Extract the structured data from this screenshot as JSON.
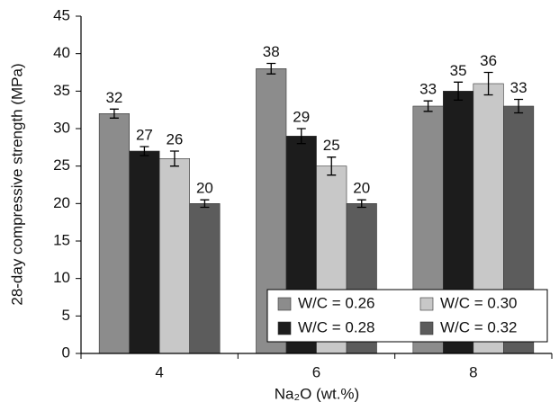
{
  "chart_data": {
    "type": "bar",
    "x_label": "Na₂O (wt.%)",
    "y_label": "28-day compressive strength (MPa)",
    "categories": [
      "4",
      "6",
      "8"
    ],
    "series": [
      {
        "name": "W/C = 0.26",
        "color": "#8c8c8c",
        "values": [
          32,
          38,
          33
        ],
        "errors": [
          0.6,
          0.7,
          0.7
        ]
      },
      {
        "name": "W/C = 0.28",
        "color": "#1c1c1c",
        "values": [
          27,
          29,
          35
        ],
        "errors": [
          0.6,
          1,
          1.2
        ]
      },
      {
        "name": "W/C = 0.30",
        "color": "#c8c8c8",
        "values": [
          26,
          25,
          36
        ],
        "errors": [
          1,
          1.2,
          1.5
        ]
      },
      {
        "name": "W/C = 0.32",
        "color": "#5c5c5c",
        "values": [
          20,
          20,
          33
        ],
        "errors": [
          0.5,
          0.5,
          0.9
        ]
      }
    ],
    "ylim": [
      0,
      45
    ],
    "yticks": [
      0,
      5,
      10,
      15,
      20,
      25,
      30,
      35,
      40,
      45
    ],
    "legend": "lower right"
  }
}
